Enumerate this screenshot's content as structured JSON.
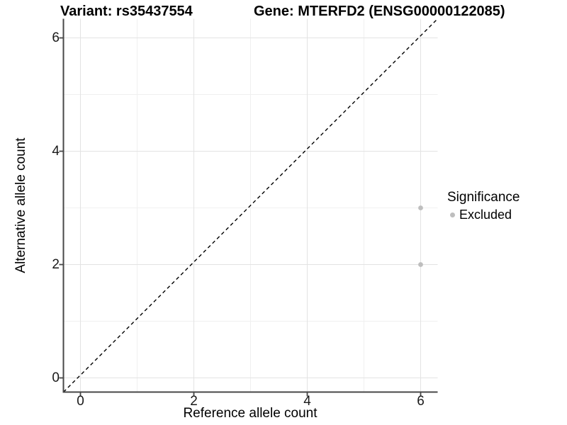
{
  "title": {
    "variant": "Variant: rs35437554",
    "gene": "Gene: MTERFD2 (ENSG00000122085)"
  },
  "axes": {
    "x_label": "Reference allele count",
    "y_label": "Alternative allele count"
  },
  "legend": {
    "title": "Significance",
    "items": [
      {
        "label": "Excluded",
        "color": "#bebebe"
      }
    ]
  },
  "colors": {
    "background": "#ffffff",
    "grid_major": "#e3e3e3",
    "grid_minor": "#f0f0f0",
    "axis_line": "#474747",
    "point": "#bebebe",
    "diagonal_line": "#000000"
  },
  "chart_data": {
    "type": "scatter",
    "title": "Variant: rs35437554   Gene: MTERFD2 (ENSG00000122085)",
    "xlabel": "Reference allele count",
    "ylabel": "Alternative allele count",
    "xlim": [
      -0.3,
      6.3
    ],
    "ylim": [
      -0.3,
      6.3
    ],
    "x_ticks": [
      0,
      2,
      4,
      6
    ],
    "y_ticks": [
      0,
      2,
      4,
      6
    ],
    "x_minor_ticks": [
      1,
      3,
      5
    ],
    "y_minor_ticks": [
      1,
      3,
      5
    ],
    "grid": true,
    "legend_position": "right",
    "series": [
      {
        "name": "Excluded",
        "color": "#bebebe",
        "points": [
          {
            "x": 6,
            "y": 3
          },
          {
            "x": 6,
            "y": 2
          }
        ]
      }
    ],
    "reference_line": {
      "description": "identity line y = x",
      "style": "dashed",
      "color": "#000000"
    }
  }
}
